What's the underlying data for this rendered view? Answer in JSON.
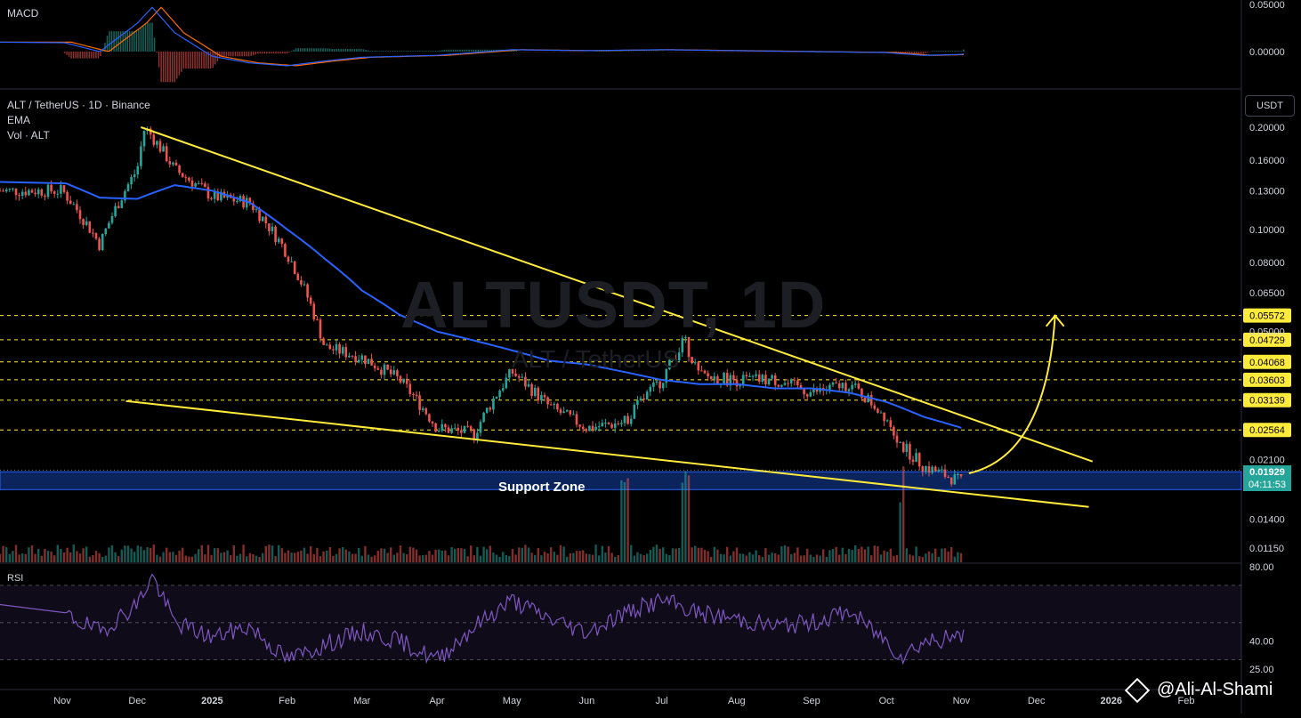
{
  "header": {
    "symbol_line": "ALT / TetherUS · 1D · Binance",
    "ema_label": "EMA",
    "vol_label": "Vol · ALT",
    "macd_label": "MACD",
    "rsi_label": "RSI",
    "currency": "USDT"
  },
  "watermark": {
    "main": "ALTUSDT, 1D",
    "sub": "ALT / TetherUS"
  },
  "annotation": {
    "support_label": "Support Zone"
  },
  "signature": "@Ali-Al-Shami",
  "current_price": {
    "value": "0.01929",
    "countdown": "04:11:53"
  },
  "colors": {
    "up": "#26a69a",
    "down": "#ef5350",
    "ema": "#2962ff",
    "trendline": "#ffeb3b",
    "level": "#ffeb3b",
    "support_band": "#0d2a6b",
    "rsi": "#7e57c2",
    "macd": "#2962ff",
    "signal": "#ff6d00"
  },
  "chart_data": [
    {
      "type": "candlestick",
      "panel": "price",
      "title": "ALT / TetherUS · 1D · Binance",
      "scale": "log",
      "y_ticks": [
        0.2,
        0.16,
        0.13,
        0.1,
        0.08,
        0.065,
        0.05,
        0.021,
        0.014,
        0.0115
      ],
      "y_tick_labels": [
        "0.20000",
        "0.16000",
        "0.13000",
        "0.10000",
        "0.08000",
        "0.06500",
        "0.05000",
        "0.02100",
        "0.01400",
        "0.01150"
      ],
      "x_labels": [
        "Nov",
        "Dec",
        "2025",
        "Feb",
        "Mar",
        "Apr",
        "May",
        "Jun",
        "Jul",
        "Aug",
        "Sep",
        "Oct",
        "Nov",
        "Dec",
        "2026",
        "Feb"
      ],
      "x_label_months": [
        0,
        1,
        2,
        3,
        4,
        5,
        6,
        7,
        8,
        9,
        10,
        11,
        12,
        13,
        14,
        15
      ],
      "horizontal_levels": [
        {
          "value": 0.05572,
          "label": "0.05572"
        },
        {
          "value": 0.04729,
          "label": "0.04729"
        },
        {
          "value": 0.04068,
          "label": "0.04068"
        },
        {
          "value": 0.03603,
          "label": "0.03603"
        },
        {
          "value": 0.03139,
          "label": "0.03139"
        },
        {
          "value": 0.02564,
          "label": "0.02564"
        }
      ],
      "support_zone": {
        "low": 0.0171,
        "high": 0.0193
      },
      "trendlines": [
        {
          "name": "upper",
          "from": {
            "month": 1.05,
            "price": 0.2
          },
          "to": {
            "month": 13.75,
            "price": 0.0207
          }
        },
        {
          "name": "lower",
          "from": {
            "month": 0.85,
            "price": 0.0312
          },
          "to": {
            "month": 13.7,
            "price": 0.0152
          }
        }
      ],
      "projection_arrow": {
        "from": {
          "month": 12.1,
          "price": 0.0191
        },
        "to": {
          "month": 13.25,
          "price": 0.0557
        }
      },
      "series": [
        {
          "name": "Price (monthly approx.)",
          "month": [
            0,
            0.5,
            1,
            1.1,
            1.5,
            2,
            2.5,
            3,
            3.5,
            4,
            4.5,
            5,
            5.5,
            6,
            6.5,
            7,
            7.5,
            8,
            8.3,
            8.5,
            9,
            9.5,
            10,
            10.5,
            11,
            11.2,
            11.5,
            12,
            12.05
          ],
          "price": [
            0.13,
            0.09,
            0.15,
            0.2,
            0.15,
            0.125,
            0.12,
            0.085,
            0.045,
            0.042,
            0.036,
            0.026,
            0.025,
            0.038,
            0.03,
            0.026,
            0.027,
            0.036,
            0.047,
            0.037,
            0.036,
            0.036,
            0.033,
            0.035,
            0.028,
            0.023,
            0.02,
            0.018,
            0.0193
          ]
        },
        {
          "name": "EMA",
          "month": [
            0,
            0.5,
            1,
            1.5,
            2,
            2.5,
            3,
            3.5,
            4,
            4.5,
            5,
            5.5,
            6,
            6.5,
            7,
            7.5,
            8,
            8.5,
            9,
            9.5,
            10,
            10.5,
            11,
            11.5,
            12
          ],
          "price": [
            0.138,
            0.124,
            0.123,
            0.135,
            0.13,
            0.12,
            0.1,
            0.082,
            0.066,
            0.056,
            0.05,
            0.047,
            0.044,
            0.041,
            0.04,
            0.038,
            0.036,
            0.035,
            0.035,
            0.034,
            0.034,
            0.033,
            0.031,
            0.028,
            0.026
          ]
        }
      ]
    },
    {
      "type": "line",
      "panel": "rsi",
      "title": "RSI",
      "y_ticks": [
        80,
        40,
        25
      ],
      "y_tick_labels": [
        "80.00",
        "40.00",
        "25.00"
      ],
      "band": [
        30,
        70
      ],
      "series": [
        {
          "name": "RSI",
          "month": [
            0,
            0.5,
            1,
            1.2,
            1.5,
            2,
            2.5,
            3,
            3.5,
            4,
            4.5,
            5,
            5.5,
            6,
            6.5,
            7,
            7.5,
            8,
            8.5,
            9,
            9.5,
            10,
            10.5,
            11,
            11.2,
            11.5,
            12,
            12.05
          ],
          "values": [
            55,
            45,
            60,
            75,
            50,
            42,
            48,
            30,
            38,
            45,
            40,
            30,
            48,
            62,
            52,
            45,
            55,
            62,
            55,
            52,
            48,
            50,
            56,
            40,
            32,
            40,
            42,
            52
          ]
        }
      ]
    },
    {
      "type": "line",
      "panel": "macd",
      "title": "MACD",
      "y_ticks": [
        0.05,
        0
      ],
      "y_tick_labels": [
        "0.05000",
        "0.00000"
      ],
      "series": [
        {
          "name": "MACD",
          "month": [
            0,
            0.5,
            1,
            1.2,
            1.5,
            2,
            2.5,
            3,
            3.5,
            4,
            5,
            6,
            7,
            8,
            9,
            10,
            11,
            11.5,
            12,
            12.05
          ],
          "values": [
            0.01,
            0.0,
            0.03,
            0.047,
            0.02,
            -0.005,
            -0.012,
            -0.015,
            -0.01,
            -0.006,
            -0.004,
            0.002,
            0.001,
            0.002,
            0.001,
            0.0,
            -0.001,
            -0.004,
            -0.003,
            -0.002
          ]
        }
      ]
    }
  ]
}
